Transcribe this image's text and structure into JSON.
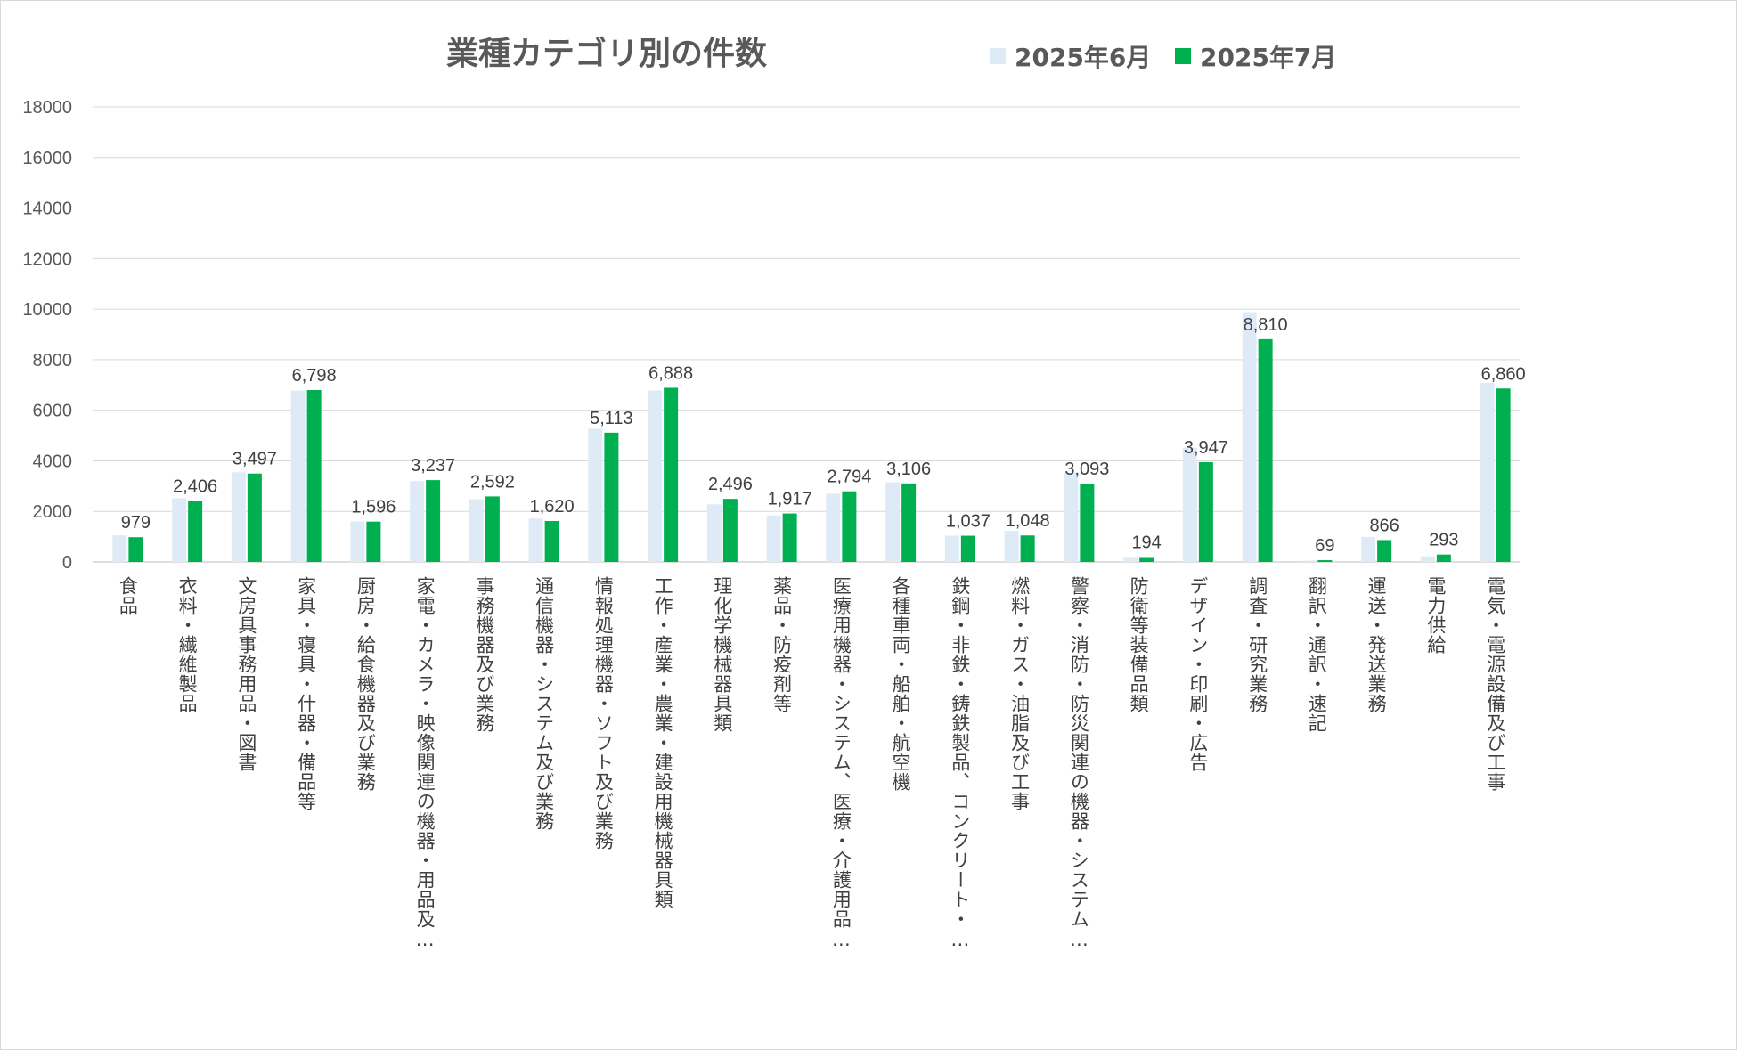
{
  "chart_data": {
    "type": "bar",
    "title": "業種カテゴリ別の件数",
    "ylim": [
      0,
      18000
    ],
    "yticks": [
      0,
      2000,
      4000,
      6000,
      8000,
      10000,
      12000,
      14000,
      16000,
      18000
    ],
    "grid": true,
    "legend_position": "top",
    "categories": [
      "食品",
      "衣料・繊維製品",
      "文房具事務用品・図書",
      "家具・寝具・什器・備品等",
      "厨房・給食機器及び業務",
      "家電・カメラ・映像関連の機器・用品及…",
      "事務機器及び業務",
      "通信機器・システム及び業務",
      "情報処理機器・ソフト及び業務",
      "工作・産業・農業・建設用機械器具類",
      "理化学機械器具類",
      "薬品・防疫剤等",
      "医療用機器・システム、医療・介護用品…",
      "各種車両・船舶・航空機",
      "鉄鋼・非鉄・鋳鉄製品、コンクリート・…",
      "燃料・ガス・油脂及び工事",
      "警察・消防・防災関連の機器・システム…",
      "防衛等装備品類",
      "デザイン・印刷・広告",
      "調査・研究業務",
      "翻訳・通訳・速記",
      "運送・発送業務",
      "電力供給",
      "電気・電源設備及び工事"
    ],
    "series": [
      {
        "name": "2025年6月",
        "color": "#deebf7",
        "values": [
          1050,
          2520,
          3550,
          6780,
          1600,
          3200,
          2480,
          1720,
          5270,
          6780,
          2280,
          1840,
          2700,
          3150,
          1040,
          1230,
          3520,
          200,
          4520,
          9880,
          50,
          990,
          220,
          7080
        ]
      },
      {
        "name": "2025年7月",
        "color": "#00b050",
        "values": [
          979,
          2406,
          3497,
          6798,
          1596,
          3237,
          2592,
          1620,
          5113,
          6888,
          2496,
          1917,
          2794,
          3106,
          1037,
          1048,
          3093,
          194,
          3947,
          8810,
          69,
          866,
          293,
          6860
        ]
      }
    ],
    "data_labels": [
      "979",
      "2,406",
      "3,497",
      "6,798",
      "1,596",
      "3,237",
      "2,592",
      "1,620",
      "5,113",
      "6,888",
      "2,496",
      "1,917",
      "2,794",
      "3,106",
      "1,037",
      "1,048",
      "3,093",
      "194",
      "3,947",
      "8,810",
      "69",
      "866",
      "293",
      "6,860"
    ]
  }
}
